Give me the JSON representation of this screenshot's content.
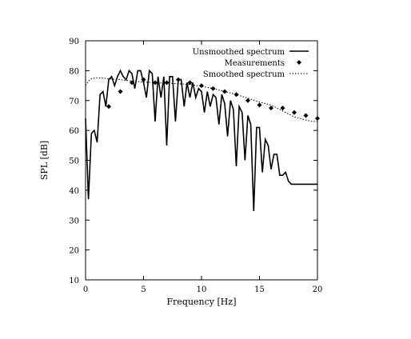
{
  "chart_data": {
    "type": "line",
    "xlabel": "Frequency [Hz]",
    "ylabel": "SPL [dB]",
    "xlim": [
      0,
      20
    ],
    "ylim": [
      10,
      90
    ],
    "xticks": [
      0,
      5,
      10,
      15,
      20
    ],
    "yticks": [
      10,
      20,
      30,
      40,
      50,
      60,
      70,
      80,
      90
    ],
    "xtick_labels": [
      "0",
      "5",
      "10",
      "15",
      "20"
    ],
    "ytick_labels": [
      "10",
      "20",
      "30",
      "40",
      "50",
      "60",
      "70",
      "80",
      "90"
    ],
    "grid": false,
    "legend_position": "top-right",
    "series": [
      {
        "name": "Unsmoothed spectrum",
        "style": "solid",
        "color": "#000000",
        "x": [
          0.0,
          0.25,
          0.5,
          0.75,
          1.0,
          1.25,
          1.5,
          1.75,
          2.0,
          2.25,
          2.5,
          2.75,
          3.0,
          3.25,
          3.5,
          3.75,
          4.0,
          4.25,
          4.5,
          4.75,
          5.0,
          5.25,
          5.5,
          5.75,
          6.0,
          6.25,
          6.5,
          6.75,
          7.0,
          7.25,
          7.5,
          7.75,
          8.0,
          8.25,
          8.5,
          8.75,
          9.0,
          9.25,
          9.5,
          9.75,
          10.0,
          10.25,
          10.5,
          10.75,
          11.0,
          11.25,
          11.5,
          11.75,
          12.0,
          12.25,
          12.5,
          12.75,
          13.0,
          13.25,
          13.5,
          13.75,
          14.0,
          14.25,
          14.5,
          14.75,
          15.0,
          15.25,
          15.5,
          15.75,
          16.0,
          16.25,
          16.5,
          16.75,
          17.0,
          17.25,
          17.5,
          17.75,
          18.0,
          18.25,
          18.5,
          18.75,
          19.0,
          19.25,
          19.5,
          19.75,
          20.0
        ],
        "y": [
          64,
          37,
          59,
          60,
          56,
          72,
          73,
          68,
          77,
          78,
          75,
          78,
          80,
          78,
          77,
          80,
          79,
          74,
          80,
          80,
          76,
          71,
          80,
          79,
          63,
          78,
          71,
          78,
          55,
          78,
          78,
          63,
          77,
          77,
          68,
          76,
          71,
          76,
          71,
          74,
          73,
          66,
          73,
          68,
          72,
          71,
          62,
          72,
          69,
          58,
          70,
          67,
          48,
          68,
          66,
          50,
          65,
          62,
          33,
          61,
          61,
          46,
          57,
          55,
          47,
          52,
          52,
          45,
          45,
          46,
          43,
          42,
          42,
          42,
          42,
          42,
          42,
          42,
          42,
          42,
          42
        ]
      },
      {
        "name": "Measurements",
        "style": "diamond-markers",
        "color": "#000000",
        "x": [
          2,
          3,
          4,
          5,
          6,
          7,
          8,
          9,
          10,
          11,
          12,
          13,
          14,
          15,
          16,
          17,
          18,
          19,
          20
        ],
        "y": [
          68,
          73,
          76,
          77,
          76,
          76,
          77,
          76,
          75,
          74,
          73,
          72,
          70,
          68.5,
          67.5,
          67.5,
          66,
          65,
          64
        ]
      },
      {
        "name": "Smoothed spectrum",
        "style": "dotted",
        "color": "#000000",
        "x": [
          0.0,
          0.25,
          0.5,
          0.75,
          1.0,
          1.5,
          2.0,
          3.0,
          4.0,
          5.0,
          6.0,
          7.0,
          8.0,
          9.0,
          10.0,
          11.0,
          12.0,
          13.0,
          14.0,
          15.0,
          16.0,
          16.5,
          17.0,
          17.5,
          18.0,
          18.5,
          19.0,
          19.5,
          20.0
        ],
        "y": [
          75,
          76.5,
          77.3,
          77.5,
          77.6,
          77.5,
          77.3,
          77.0,
          76.5,
          76.2,
          76.0,
          75.8,
          75.6,
          75.4,
          74.8,
          74.0,
          73.0,
          72.0,
          70.8,
          69.5,
          68.5,
          67.5,
          66.5,
          65.5,
          64.5,
          64.0,
          63.5,
          63.0,
          63.0
        ]
      }
    ]
  }
}
